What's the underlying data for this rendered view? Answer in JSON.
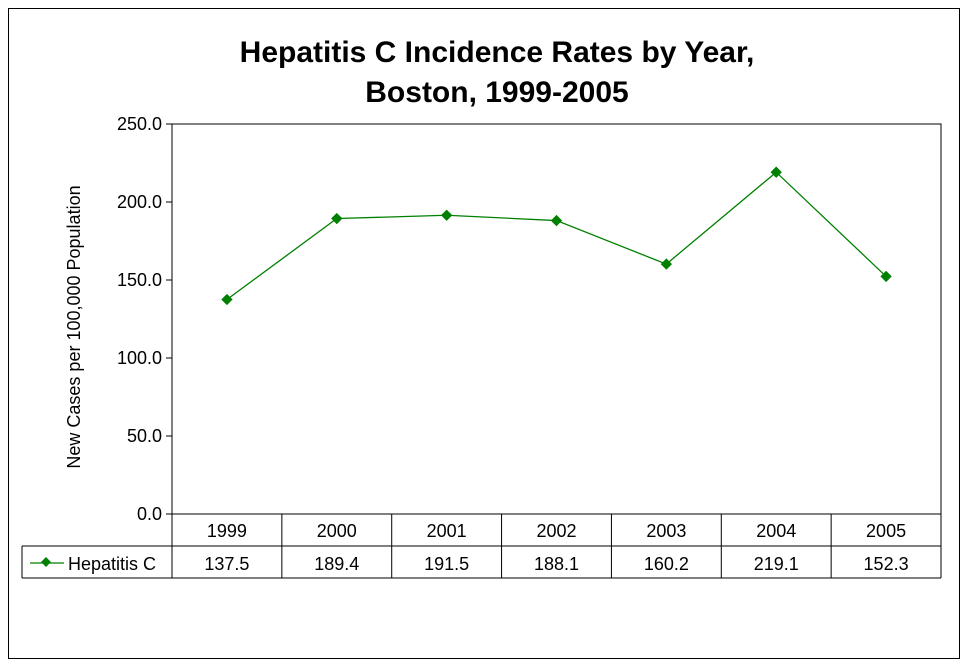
{
  "chart_data": {
    "type": "line",
    "title_line1": "Hepatitis C Incidence Rates by Year,",
    "title_line2": "Boston, 1999-2005",
    "ylabel": "New Cases per 100,000 Population",
    "xlabel": "",
    "categories": [
      "1999",
      "2000",
      "2001",
      "2002",
      "2003",
      "2004",
      "2005"
    ],
    "series": [
      {
        "name": "Hepatitis C",
        "values": [
          137.5,
          189.4,
          191.5,
          188.1,
          160.2,
          219.1,
          152.3
        ],
        "value_labels": [
          "137.5",
          "189.4",
          "191.5",
          "188.1",
          "160.2",
          "219.1",
          "152.3"
        ],
        "color": "#008000",
        "marker": "diamond"
      }
    ],
    "ylim": [
      0,
      250
    ],
    "yticks": [
      "0.0",
      "50.0",
      "100.0",
      "150.0",
      "200.0",
      "250.0"
    ],
    "data_table": true,
    "grid": false,
    "legend_placement": "data-table"
  }
}
